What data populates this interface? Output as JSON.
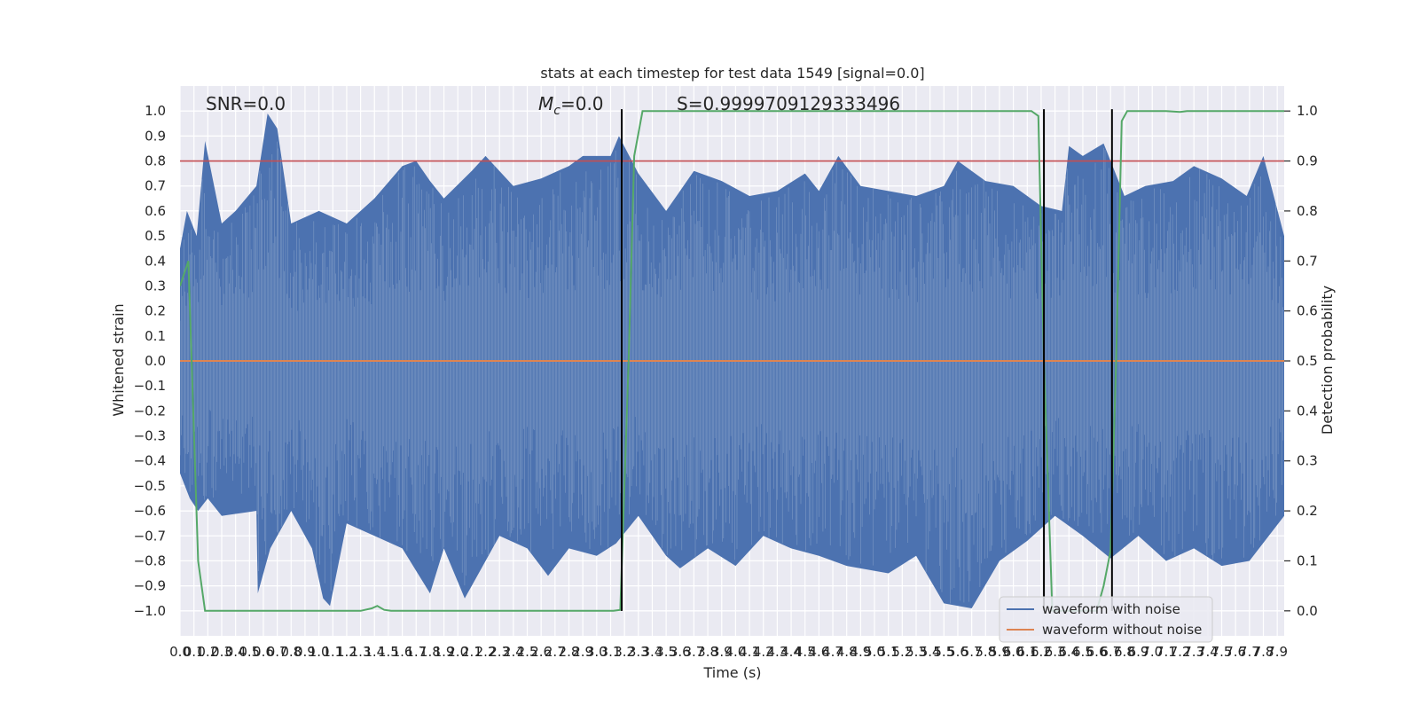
{
  "chart_data": {
    "type": "line",
    "title": "stats at each timestep for test data 1549 [signal=0.0]",
    "xlabel": "Time (s)",
    "ylabel": "Whitened strain",
    "ylabel_right": "Detection probability",
    "xlim": [
      0.0,
      7.95
    ],
    "ylim": [
      -1.1,
      1.1
    ],
    "ylim_right": [
      -0.05,
      1.05
    ],
    "x_tick_values": [
      0.0,
      0.1,
      0.2,
      0.3,
      0.4,
      0.5,
      0.6,
      0.7,
      0.8,
      0.9,
      1.0,
      1.1,
      1.2,
      1.3,
      1.4,
      1.5,
      1.6,
      1.7,
      1.8,
      1.9,
      2.0,
      2.1,
      2.2,
      2.3,
      2.4,
      2.5,
      2.6,
      2.7,
      2.8,
      2.9,
      3.0,
      3.1,
      3.2,
      3.3,
      3.4,
      3.5,
      3.6,
      3.7,
      3.8,
      3.9,
      4.0,
      4.1,
      4.2,
      4.3,
      4.4,
      4.5,
      4.6,
      4.7,
      4.8,
      4.9,
      5.0,
      5.1,
      5.2,
      5.3,
      5.4,
      5.5,
      5.6,
      5.7,
      5.8,
      5.9,
      6.0,
      6.1,
      6.2,
      6.3,
      6.4,
      6.5,
      6.6,
      6.7,
      6.8,
      6.9,
      7.0,
      7.1,
      7.2,
      7.3,
      7.4,
      7.5,
      7.6,
      7.7,
      7.8,
      7.9
    ],
    "x_tick_labels": [
      "0.0",
      "0.1",
      "0.2",
      "0.3",
      "0.4",
      "0.5",
      "0.6",
      "0.7",
      "0.8",
      "0.9",
      "1.0",
      "1.1",
      "1.2",
      "1.3",
      "1.4",
      "1.5",
      "1.6",
      "1.7",
      "1.8",
      "1.9",
      "2.0",
      "2.1",
      "2.2",
      "2.3",
      "2.4",
      "2.5",
      "2.6",
      "2.7",
      "2.8",
      "2.9",
      "3.0",
      "3.1",
      "3.2",
      "3.3",
      "3.4",
      "3.5",
      "3.6",
      "3.7",
      "3.8",
      "3.9",
      "4.0",
      "4.1",
      "4.2",
      "4.3",
      "4.4",
      "4.5",
      "4.6",
      "4.7",
      "4.8",
      "4.9",
      "5.0",
      "5.1",
      "5.2",
      "5.3",
      "5.4",
      "5.5",
      "5.6",
      "5.7",
      "5.8",
      "5.9",
      "6.0",
      "6.1",
      "6.2",
      "6.3",
      "6.4",
      "6.5",
      "6.6",
      "6.7",
      "6.8",
      "6.9",
      "7.0",
      "7.1",
      "7.2",
      "7.3",
      "7.4",
      "7.5",
      "7.6",
      "7.7",
      "7.8",
      "7.9"
    ],
    "y_tick_values": [
      -1.0,
      -0.9,
      -0.8,
      -0.7,
      -0.6,
      -0.5,
      -0.4,
      -0.3,
      -0.2,
      -0.1,
      0.0,
      0.1,
      0.2,
      0.3,
      0.4,
      0.5,
      0.6,
      0.7,
      0.8,
      0.9,
      1.0
    ],
    "y_tick_labels": [
      "−1.0",
      "−0.9",
      "−0.8",
      "−0.7",
      "−0.6",
      "−0.5",
      "−0.4",
      "−0.3",
      "−0.2",
      "−0.1",
      "0.0",
      "0.1",
      "0.2",
      "0.3",
      "0.4",
      "0.5",
      "0.6",
      "0.7",
      "0.8",
      "0.9",
      "1.0"
    ],
    "y_right_tick_values": [
      0.0,
      0.1,
      0.2,
      0.3,
      0.4,
      0.5,
      0.6,
      0.7,
      0.8,
      0.9,
      1.0
    ],
    "y_right_tick_labels": [
      "0.0",
      "0.1",
      "0.2",
      "0.3",
      "0.4",
      "0.5",
      "0.6",
      "0.7",
      "0.8",
      "0.9",
      "1.0"
    ],
    "annotations": {
      "snr": "SNR=0.0",
      "mc_symbol": "M",
      "mc_subscript": "c",
      "mc_value": "=0.0",
      "score": "S=0.9999709129333496"
    },
    "legend": {
      "placement": "lower-right",
      "entries": [
        {
          "label": "waveform with noise",
          "color": "#4c72b0"
        },
        {
          "label": "waveform without noise",
          "color": "#dd8452"
        }
      ]
    },
    "series": [
      {
        "name": "waveform with noise",
        "color": "#4c72b0",
        "upper_envelope": [
          [
            0.0,
            0.45
          ],
          [
            0.05,
            0.6
          ],
          [
            0.12,
            0.5
          ],
          [
            0.18,
            0.88
          ],
          [
            0.3,
            0.55
          ],
          [
            0.4,
            0.6
          ],
          [
            0.55,
            0.7
          ],
          [
            0.63,
            0.99
          ],
          [
            0.7,
            0.93
          ],
          [
            0.8,
            0.55
          ],
          [
            1.0,
            0.6
          ],
          [
            1.2,
            0.55
          ],
          [
            1.4,
            0.65
          ],
          [
            1.6,
            0.78
          ],
          [
            1.7,
            0.8
          ],
          [
            1.8,
            0.72
          ],
          [
            1.9,
            0.65
          ],
          [
            2.1,
            0.76
          ],
          [
            2.2,
            0.82
          ],
          [
            2.4,
            0.7
          ],
          [
            2.6,
            0.73
          ],
          [
            2.8,
            0.78
          ],
          [
            2.9,
            0.82
          ],
          [
            3.1,
            0.82
          ],
          [
            3.16,
            0.9
          ],
          [
            3.3,
            0.75
          ],
          [
            3.5,
            0.6
          ],
          [
            3.7,
            0.76
          ],
          [
            3.9,
            0.72
          ],
          [
            4.1,
            0.66
          ],
          [
            4.3,
            0.68
          ],
          [
            4.5,
            0.75
          ],
          [
            4.6,
            0.68
          ],
          [
            4.74,
            0.82
          ],
          [
            4.9,
            0.7
          ],
          [
            5.1,
            0.68
          ],
          [
            5.3,
            0.66
          ],
          [
            5.5,
            0.7
          ],
          [
            5.6,
            0.8
          ],
          [
            5.8,
            0.72
          ],
          [
            6.0,
            0.7
          ],
          [
            6.2,
            0.62
          ],
          [
            6.35,
            0.6
          ],
          [
            6.4,
            0.86
          ],
          [
            6.5,
            0.82
          ],
          [
            6.65,
            0.87
          ],
          [
            6.8,
            0.66
          ],
          [
            6.95,
            0.7
          ],
          [
            7.15,
            0.72
          ],
          [
            7.3,
            0.78
          ],
          [
            7.5,
            0.73
          ],
          [
            7.68,
            0.66
          ],
          [
            7.8,
            0.82
          ],
          [
            7.95,
            0.5
          ]
        ],
        "lower_envelope": [
          [
            0.0,
            -0.45
          ],
          [
            0.07,
            -0.55
          ],
          [
            0.13,
            -0.6
          ],
          [
            0.2,
            -0.55
          ],
          [
            0.3,
            -0.62
          ],
          [
            0.55,
            -0.6
          ],
          [
            0.56,
            -0.93
          ],
          [
            0.65,
            -0.75
          ],
          [
            0.8,
            -0.6
          ],
          [
            0.95,
            -0.75
          ],
          [
            1.03,
            -0.95
          ],
          [
            1.08,
            -0.98
          ],
          [
            1.2,
            -0.65
          ],
          [
            1.4,
            -0.7
          ],
          [
            1.6,
            -0.75
          ],
          [
            1.8,
            -0.93
          ],
          [
            1.9,
            -0.75
          ],
          [
            2.05,
            -0.95
          ],
          [
            2.1,
            -0.9
          ],
          [
            2.3,
            -0.7
          ],
          [
            2.5,
            -0.75
          ],
          [
            2.65,
            -0.86
          ],
          [
            2.8,
            -0.75
          ],
          [
            3.0,
            -0.78
          ],
          [
            3.14,
            -0.73
          ],
          [
            3.3,
            -0.62
          ],
          [
            3.5,
            -0.78
          ],
          [
            3.6,
            -0.83
          ],
          [
            3.8,
            -0.75
          ],
          [
            4.0,
            -0.82
          ],
          [
            4.2,
            -0.7
          ],
          [
            4.4,
            -0.75
          ],
          [
            4.6,
            -0.78
          ],
          [
            4.8,
            -0.82
          ],
          [
            5.1,
            -0.85
          ],
          [
            5.3,
            -0.78
          ],
          [
            5.5,
            -0.97
          ],
          [
            5.7,
            -0.99
          ],
          [
            5.9,
            -0.8
          ],
          [
            6.1,
            -0.72
          ],
          [
            6.3,
            -0.62
          ],
          [
            6.5,
            -0.7
          ],
          [
            6.7,
            -0.79
          ],
          [
            6.9,
            -0.7
          ],
          [
            7.1,
            -0.8
          ],
          [
            7.3,
            -0.75
          ],
          [
            7.5,
            -0.82
          ],
          [
            7.7,
            -0.8
          ],
          [
            7.95,
            -0.62
          ]
        ]
      },
      {
        "name": "waveform without noise",
        "color": "#dd8452",
        "points": [
          [
            0.0,
            0.0
          ],
          [
            7.95,
            0.0
          ]
        ]
      },
      {
        "name": "",
        "axis": "right",
        "color": "#55a868",
        "points": [
          [
            0.0,
            0.65
          ],
          [
            0.06,
            0.7
          ],
          [
            0.13,
            0.1
          ],
          [
            0.18,
            0.0
          ],
          [
            1.3,
            0.0
          ],
          [
            1.38,
            0.005
          ],
          [
            1.42,
            0.01
          ],
          [
            1.47,
            0.002
          ],
          [
            1.52,
            0.0
          ],
          [
            3.12,
            0.0
          ],
          [
            3.17,
            0.002
          ],
          [
            3.23,
            0.5
          ],
          [
            3.27,
            0.91
          ],
          [
            3.33,
            1.0
          ],
          [
            6.13,
            1.0
          ],
          [
            6.18,
            0.99
          ],
          [
            6.22,
            0.5
          ],
          [
            6.28,
            0.0
          ],
          [
            6.6,
            0.0
          ],
          [
            6.65,
            0.05
          ],
          [
            6.7,
            0.12
          ],
          [
            6.74,
            0.5
          ],
          [
            6.78,
            0.98
          ],
          [
            6.82,
            1.0
          ],
          [
            7.1,
            1.0
          ],
          [
            7.2,
            0.998
          ],
          [
            7.25,
            1.0
          ],
          [
            7.95,
            1.0
          ]
        ]
      }
    ],
    "threshold_line": {
      "y_right": 0.9,
      "color": "#c44e52"
    },
    "vertical_markers": {
      "x": [
        3.18,
        6.22,
        6.71
      ],
      "color": "#000000"
    }
  }
}
